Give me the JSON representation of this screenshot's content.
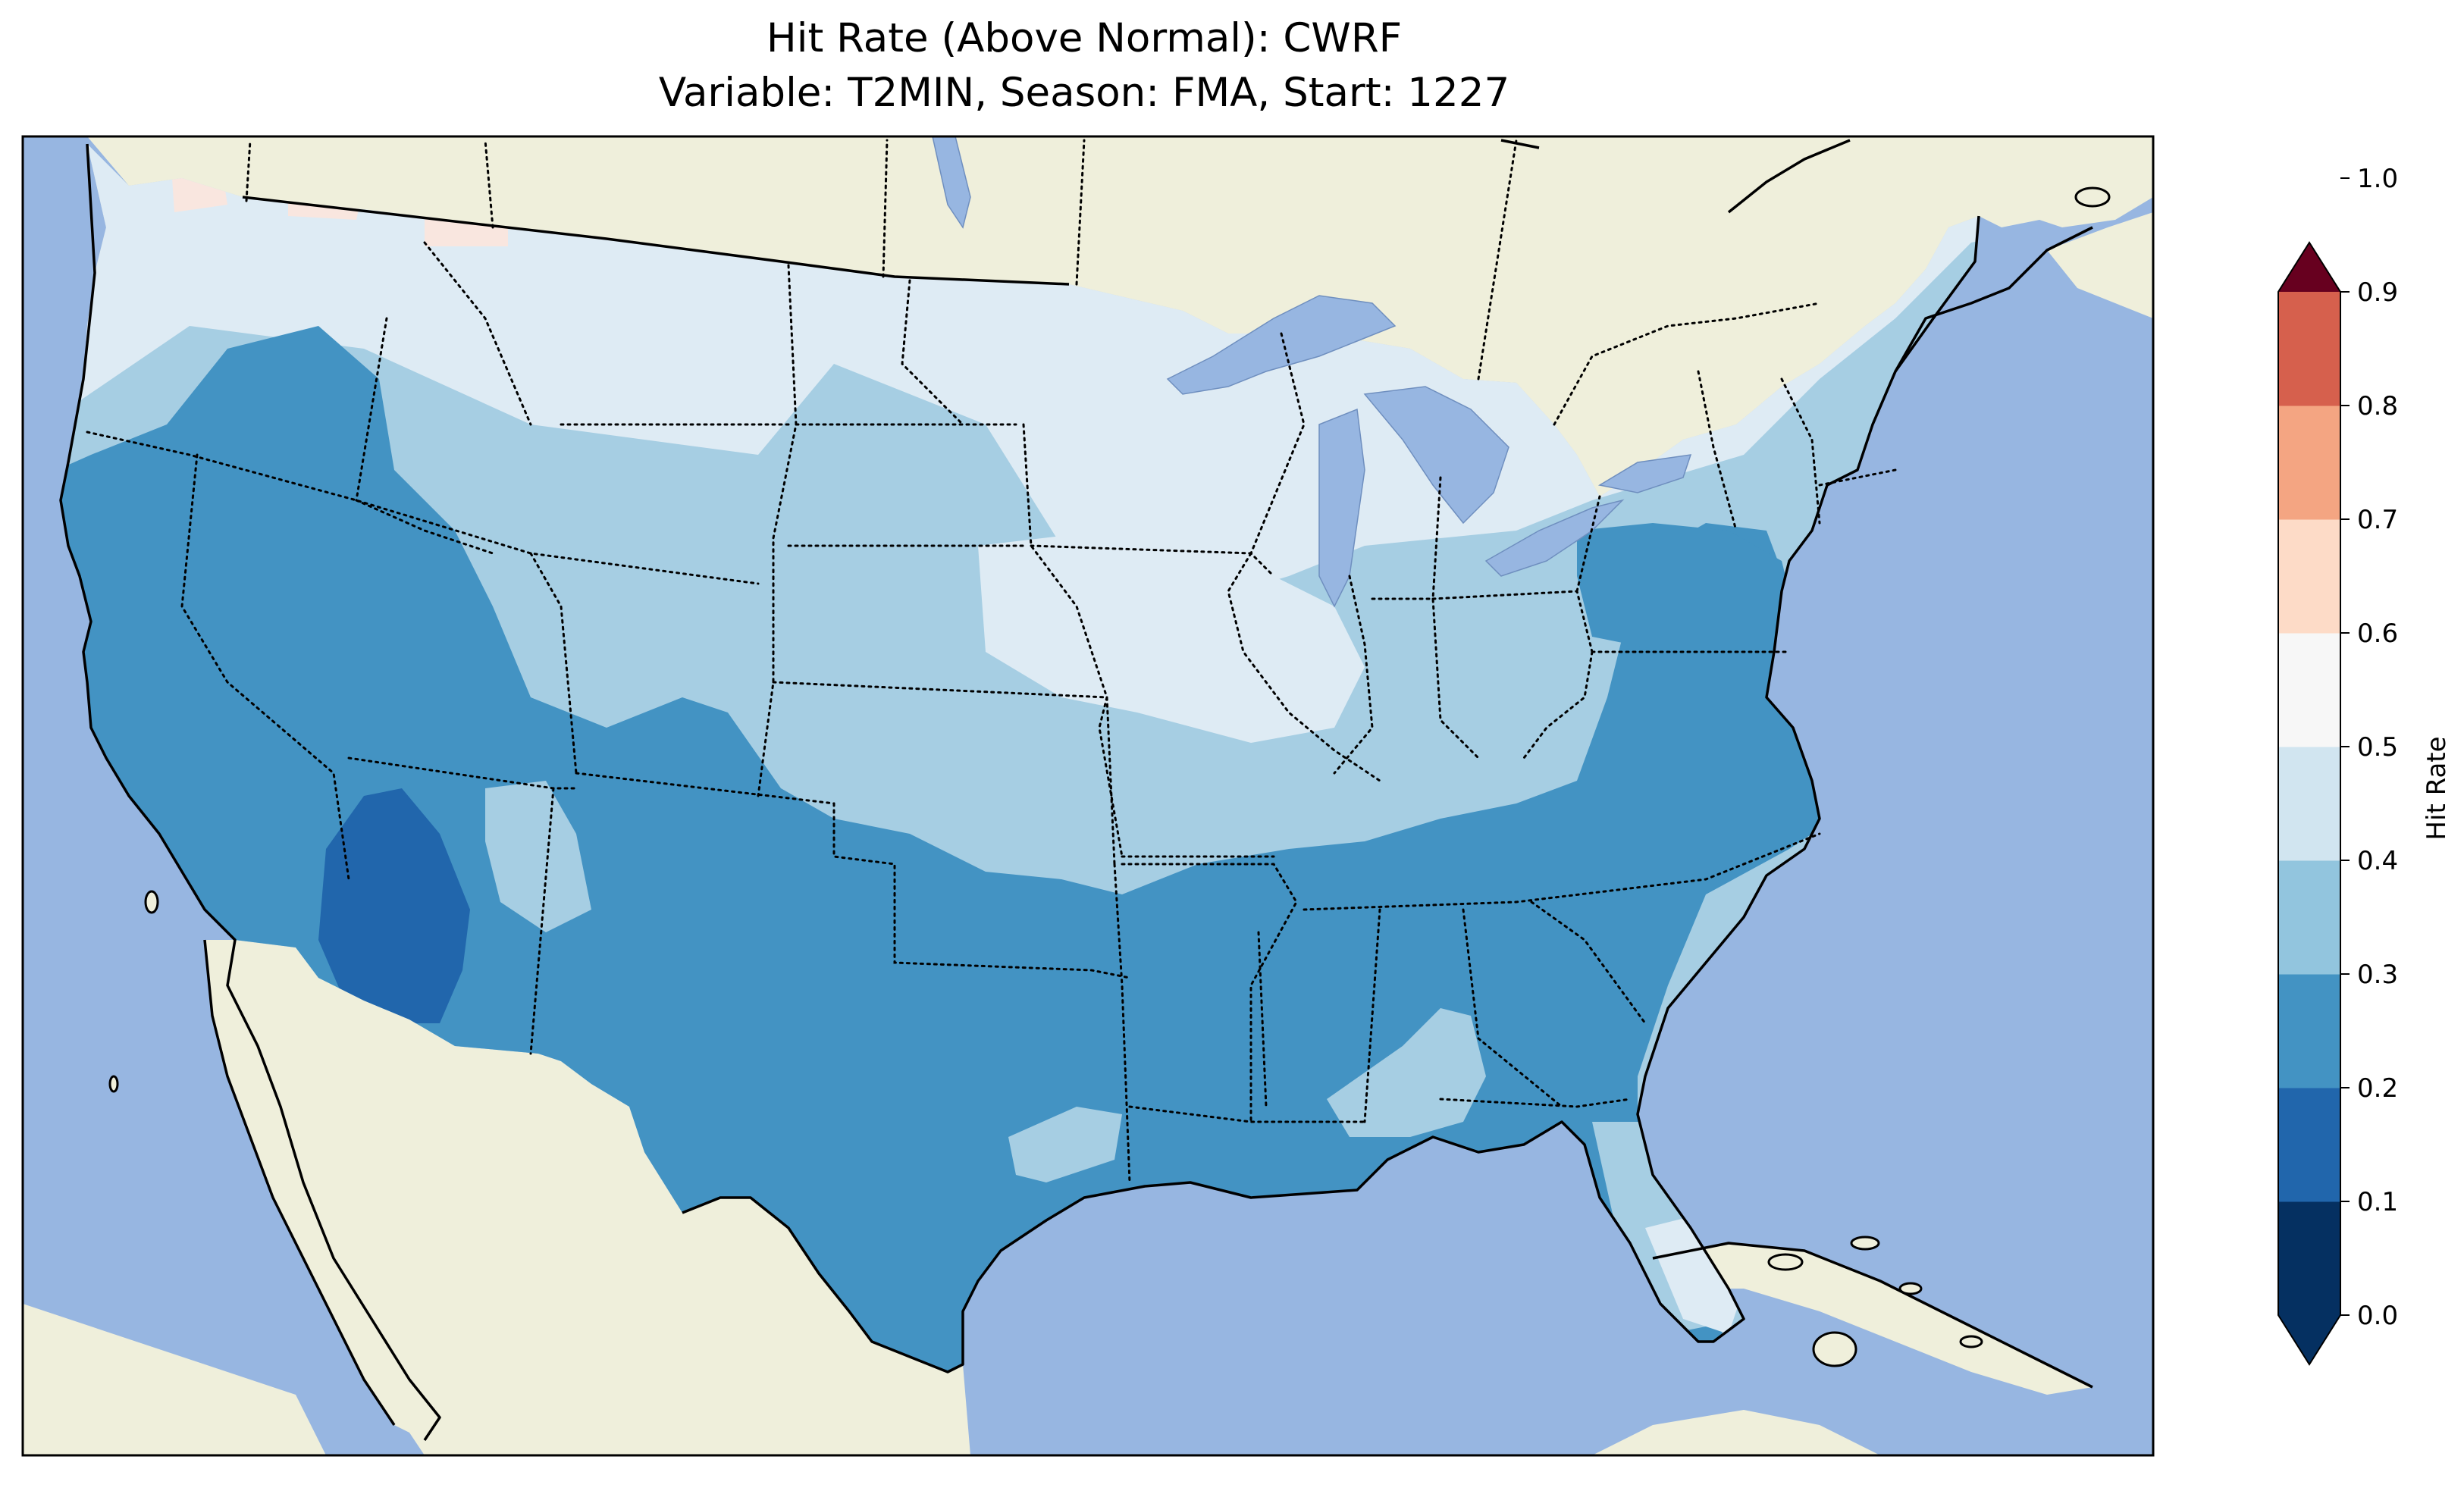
{
  "title": {
    "line1": "Hit Rate (Above Normal): CWRF",
    "line2": "Variable: T2MIN, Season: FMA, Start: 1227"
  },
  "colorbar": {
    "label": "Hit Rate",
    "ticks": [
      "0.0",
      "0.1",
      "0.2",
      "0.3",
      "0.4",
      "0.5",
      "0.6",
      "0.7",
      "0.8",
      "0.9",
      "1.0"
    ],
    "colors": [
      "#053061",
      "#2166ac",
      "#4393c3",
      "#92c5de",
      "#d1e5f0",
      "#f7f7f7",
      "#fddbc7",
      "#f4a582",
      "#d6604d",
      "#b2182b",
      "#67001f"
    ],
    "extend": "both"
  },
  "map_colors": {
    "ocean": "#97b6e1",
    "land": "#efefdb",
    "lakes": "#97b6e1"
  },
  "legend_bins": [
    {
      "range": "0.1-0.2",
      "color": "#2166ac"
    },
    {
      "range": "0.2-0.3",
      "color": "#4393c3"
    },
    {
      "range": "0.3-0.4",
      "color": "#a6cee3"
    },
    {
      "range": "0.4-0.5",
      "color": "#deebf4"
    },
    {
      "range": "0.5-0.6",
      "color": "#f9e6df"
    }
  ]
}
